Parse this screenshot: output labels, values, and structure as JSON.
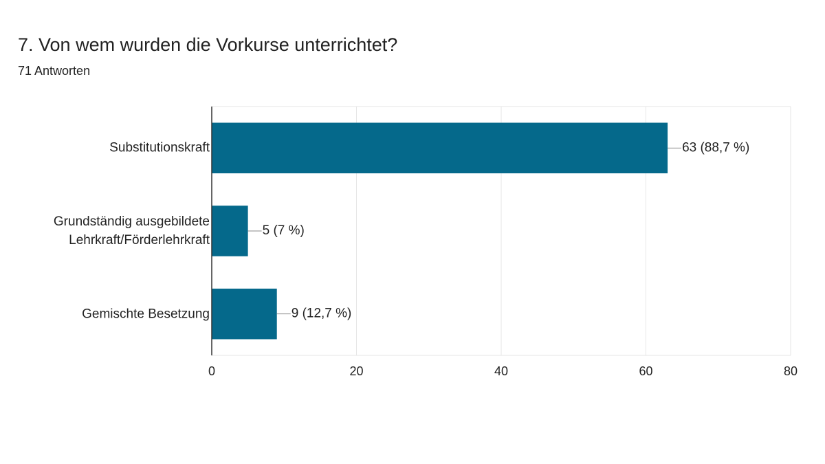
{
  "chart_data": {
    "type": "hbar",
    "title": "7. Von wem wurden die Vorkurse unterrichtet?",
    "subtitle": "71 Antworten",
    "categories": [
      "Substitutionskraft",
      "Grundständig ausgebildete Lehrkraft/Förderlehrkraft",
      "Gemischte Besetzung"
    ],
    "values": [
      63,
      5,
      9
    ],
    "value_labels": [
      "63 (88,7 %)",
      "5 (7 %)",
      "9 (12,7 %)"
    ],
    "color": "#05698b",
    "xlim": [
      0,
      80
    ],
    "xticks": [
      0,
      20,
      40,
      60,
      80
    ],
    "grid": true
  }
}
